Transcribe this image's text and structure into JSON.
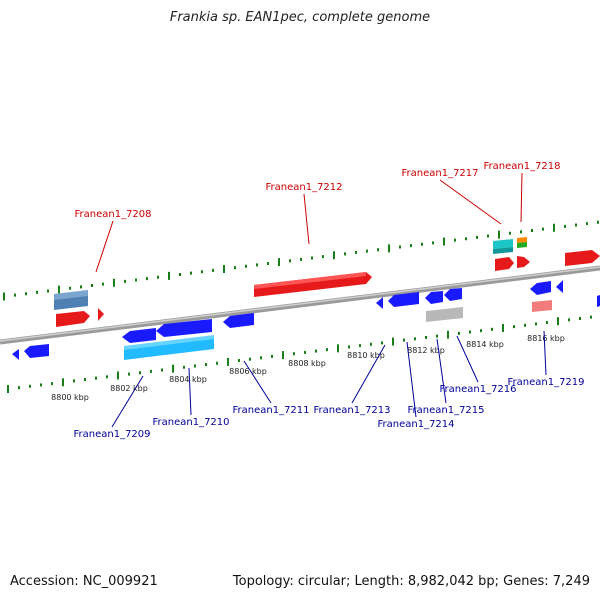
{
  "title": "Frankia sp. EAN1pec, complete genome",
  "footer": {
    "accession": "Accession: NC_009921",
    "summary": "Topology: circular; Length: 8,982,042 bp; Genes: 7,249"
  },
  "colors": {
    "forward_label": "#cc0000",
    "reverse_label": "#000099",
    "tick": "#1a7f1a",
    "backbone": "#8a8a8a"
  },
  "ticks": [
    "8800 kbp",
    "8802 kbp",
    "8804 kbp",
    "8806 kbp",
    "8808 kbp",
    "8810 kbp",
    "8812 kbp",
    "8814 kbp",
    "8816 kbp"
  ],
  "gene_labels": [
    {
      "text": "Franean1_7208",
      "strand": "forward"
    },
    {
      "text": "Franean1_7212",
      "strand": "forward"
    },
    {
      "text": "Franean1_7217",
      "strand": "forward"
    },
    {
      "text": "Franean1_7218",
      "strand": "forward"
    },
    {
      "text": "Franean1_7209",
      "strand": "reverse"
    },
    {
      "text": "Franean1_7210",
      "strand": "reverse"
    },
    {
      "text": "Franean1_7211",
      "strand": "reverse"
    },
    {
      "text": "Franean1_7213",
      "strand": "reverse"
    },
    {
      "text": "Franean1_7214",
      "strand": "reverse"
    },
    {
      "text": "Franean1_7215",
      "strand": "reverse"
    },
    {
      "text": "Franean1_7216",
      "strand": "reverse"
    },
    {
      "text": "Franean1_7219",
      "strand": "reverse"
    }
  ]
}
